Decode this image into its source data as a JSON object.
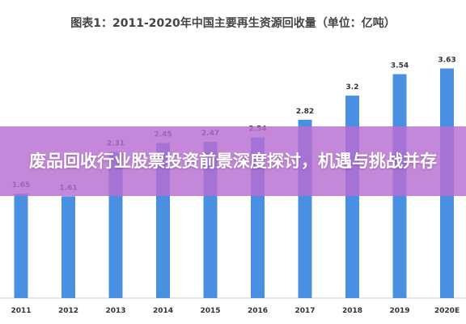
{
  "headline": "废品回收行业股票投资前景深度探讨，机遇与挑战并存",
  "colors": {
    "bar": "#4a90e2",
    "banner": "#b86cd2",
    "label": "#333333",
    "axis": "#cccccc"
  },
  "chart_data": {
    "type": "bar",
    "title": "图表1：2011-2020年中国主要再生资源回收量（单位：亿吨）",
    "categories": [
      "2011",
      "2012",
      "2013",
      "2014",
      "2015",
      "2016",
      "2017",
      "2018",
      "2019",
      "2020E"
    ],
    "values": [
      1.65,
      1.61,
      2.31,
      2.45,
      2.47,
      2.54,
      2.82,
      3.2,
      3.54,
      3.63
    ],
    "value_labels": [
      "1.65",
      "1.61",
      "2.31",
      "2.45",
      "2.47",
      "2.54",
      "2.82",
      "3.2",
      "3.54",
      "3.63"
    ],
    "ylim": [
      0,
      4.2
    ],
    "grid": false,
    "xlabel": "",
    "ylabel": ""
  }
}
